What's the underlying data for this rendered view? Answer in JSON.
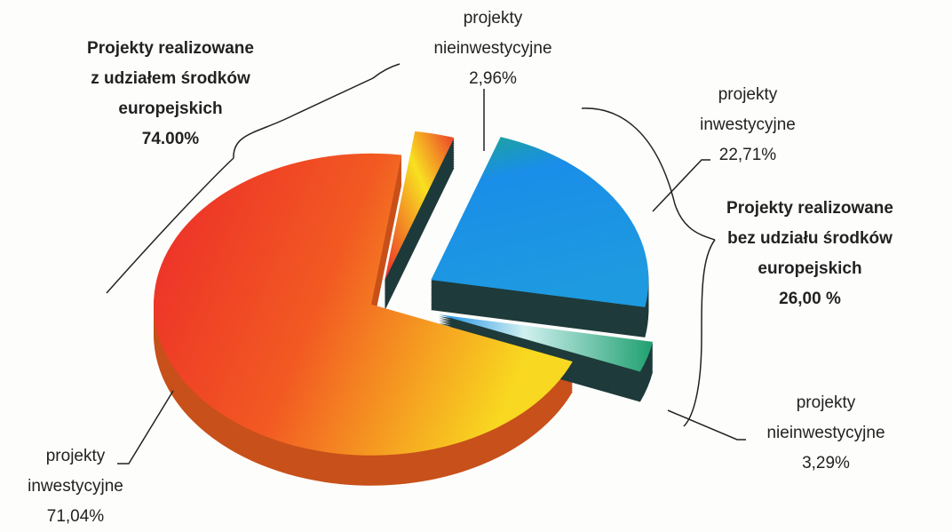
{
  "chart_data": {
    "type": "pie",
    "categories": [
      "projekty inwestycyjne",
      "projekty nieinwestycyjne",
      "projekty inwestycyjne",
      "projekty nieinwestycyjne"
    ],
    "values": [
      71.04,
      2.96,
      22.71,
      3.29
    ],
    "value_labels": [
      "71,04%",
      "2,96%",
      "22,71%",
      "3,29%"
    ],
    "colors": [
      "#ee3b2c",
      "#f04a22",
      "#1f90e0",
      "#2aa58a"
    ],
    "groups": [
      {
        "label": [
          "Projekty realizowane",
          "z udziałem środków",
          "europejskich"
        ],
        "value": 74.0,
        "value_label": "74.00%"
      },
      {
        "label": [
          "Projekty  realizowane",
          "bez udziału środków",
          "europejskich"
        ],
        "value": 26.0,
        "value_label": "26,00 %"
      }
    ]
  }
}
